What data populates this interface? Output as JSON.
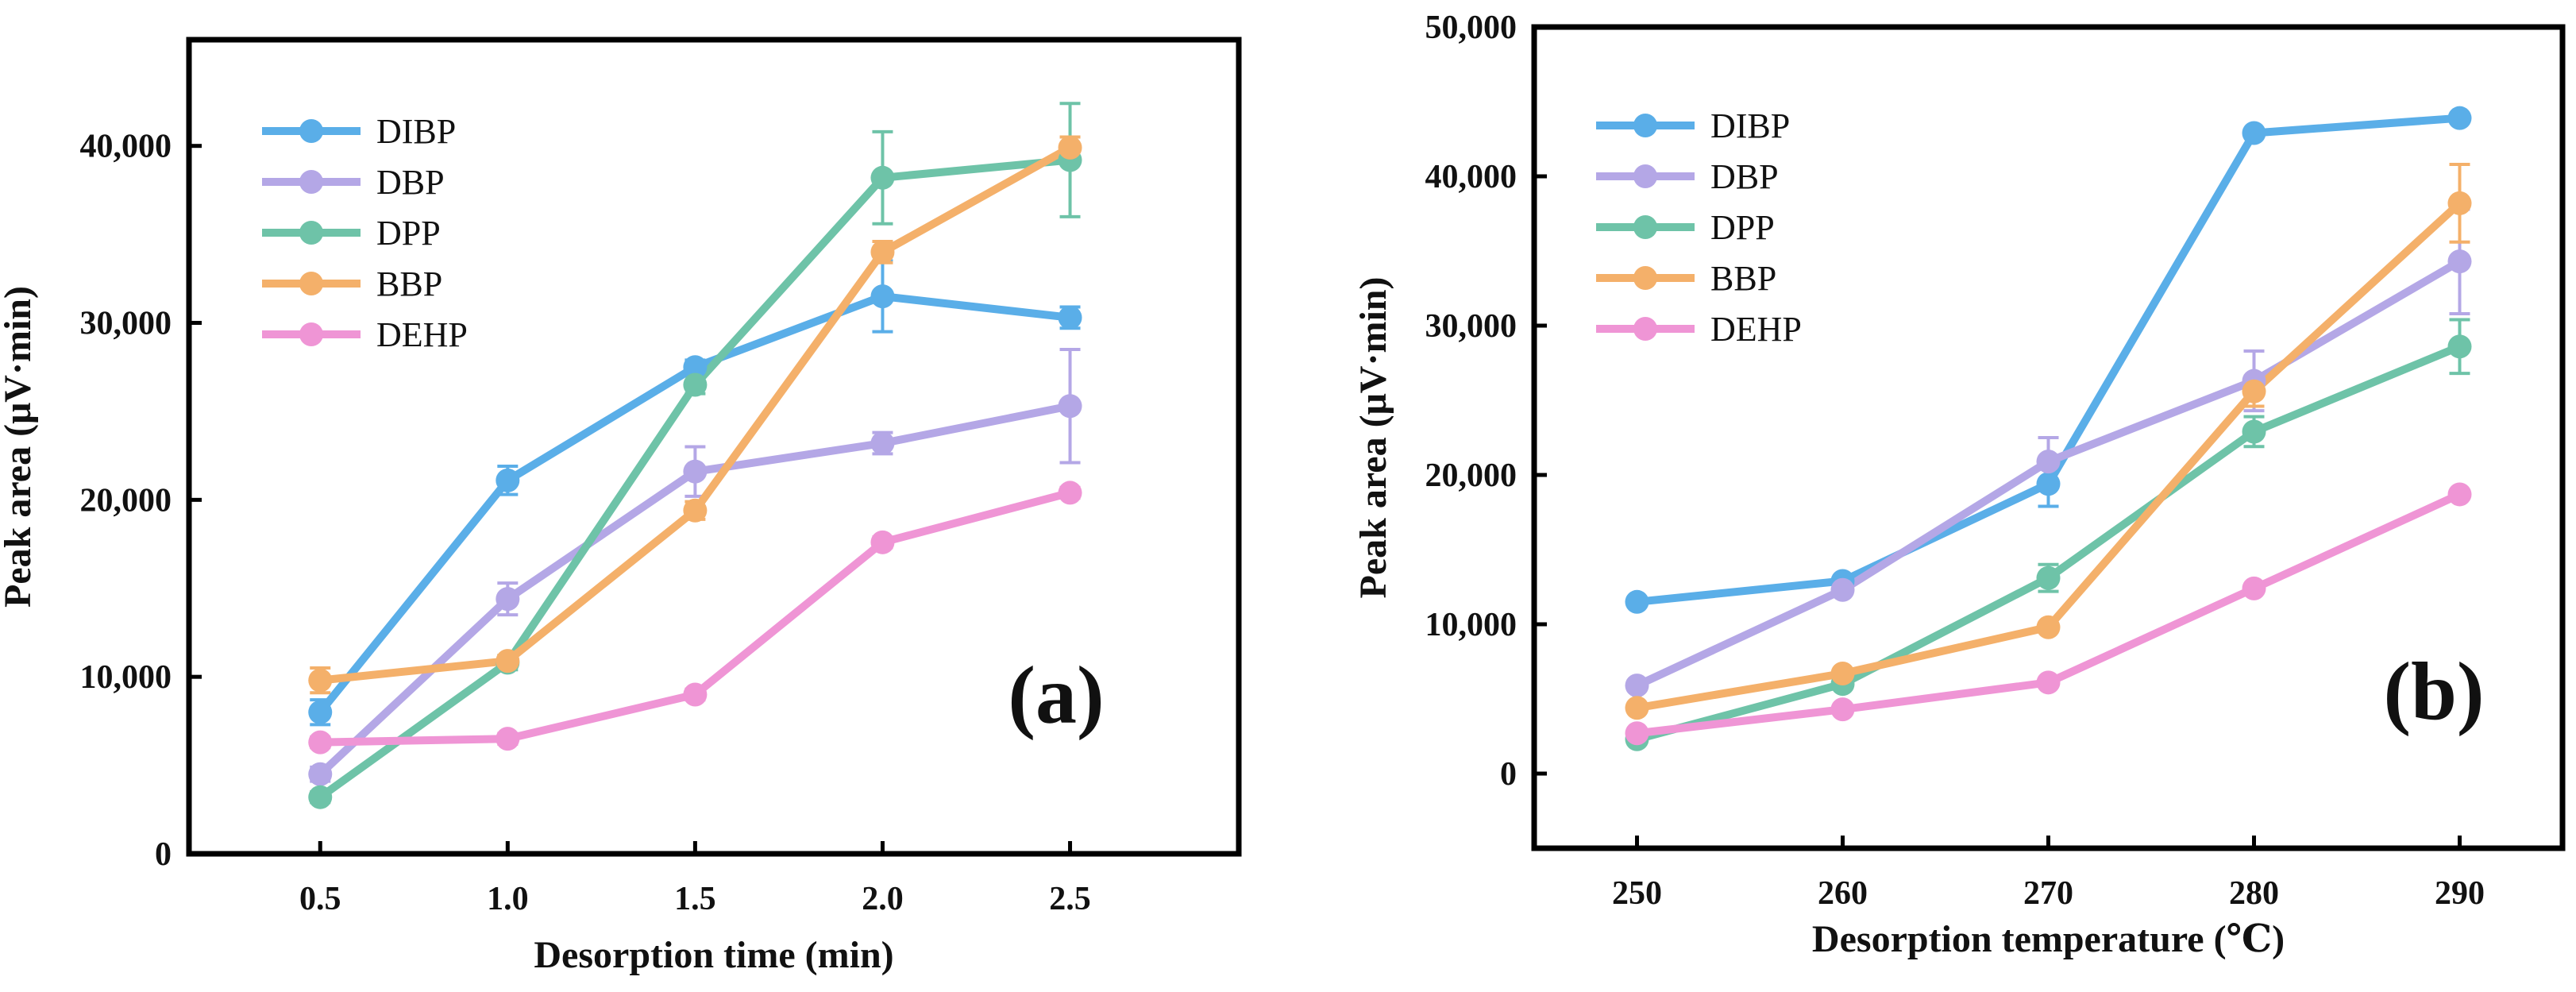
{
  "chart_data": [
    {
      "type": "line",
      "panel_label": "(a)",
      "xlabel": "Desorption time (min)",
      "ylabel": "Peak area (μV·min)",
      "x": [
        0.5,
        1.0,
        1.5,
        2.0,
        2.5
      ],
      "x_tick_labels": [
        "0.5",
        "1.0",
        "1.5",
        "2.0",
        "2.5"
      ],
      "xlim": [
        0.15,
        2.95
      ],
      "ylim": [
        0,
        46000
      ],
      "y_ticks": [
        0,
        10000,
        20000,
        30000,
        40000
      ],
      "y_tick_labels": [
        "0",
        "10,000",
        "20,000",
        "30,000",
        "40,000"
      ],
      "legend_position": "top-left",
      "series": [
        {
          "name": "DIBP",
          "color": "#5aaee8",
          "values": [
            8000,
            21100,
            27500,
            31500,
            30300
          ],
          "errors": [
            700,
            800,
            400,
            2000,
            600
          ]
        },
        {
          "name": "DBP",
          "color": "#b4a7e6",
          "values": [
            4500,
            14400,
            21600,
            23200,
            25300
          ],
          "errors": [
            400,
            900,
            1400,
            600,
            3200
          ]
        },
        {
          "name": "DPP",
          "color": "#6ec3a8",
          "values": [
            3200,
            10800,
            26500,
            38200,
            39200
          ],
          "errors": [
            300,
            400,
            500,
            2600,
            3200
          ]
        },
        {
          "name": "BBP",
          "color": "#f4b06a",
          "values": [
            9800,
            10900,
            19400,
            34000,
            39900
          ],
          "errors": [
            700,
            300,
            500,
            600,
            600
          ]
        },
        {
          "name": "DEHP",
          "color": "#ef95d5",
          "values": [
            6300,
            6500,
            9000,
            17600,
            20400
          ],
          "errors": [
            300,
            300,
            300,
            300,
            300
          ]
        }
      ]
    },
    {
      "type": "line",
      "panel_label": "(b)",
      "xlabel": "Desorption temperature (℃)",
      "ylabel": "Peak area (μV·min)",
      "x": [
        250,
        260,
        270,
        280,
        290
      ],
      "x_tick_labels": [
        "250",
        "260",
        "270",
        "280",
        "290"
      ],
      "xlim": [
        245,
        295
      ],
      "ylim": [
        -5000,
        50000
      ],
      "y_ticks": [
        0,
        10000,
        20000,
        30000,
        40000,
        50000
      ],
      "y_tick_labels": [
        "0",
        "10,000",
        "20,000",
        "30,000",
        "40,000",
        "50,000"
      ],
      "legend_position": "top-left",
      "series": [
        {
          "name": "DIBP",
          "color": "#5aaee8",
          "values": [
            11500,
            12900,
            19400,
            42900,
            43900
          ],
          "errors": [
            300,
            300,
            1500,
            300,
            300
          ]
        },
        {
          "name": "DBP",
          "color": "#b4a7e6",
          "values": [
            5900,
            12300,
            20900,
            26300,
            34300
          ],
          "errors": [
            300,
            300,
            1600,
            2000,
            3500
          ]
        },
        {
          "name": "DPP",
          "color": "#6ec3a8",
          "values": [
            2300,
            6000,
            13100,
            22900,
            28600
          ],
          "errors": [
            300,
            300,
            900,
            1000,
            1800
          ]
        },
        {
          "name": "BBP",
          "color": "#f4b06a",
          "values": [
            4400,
            6700,
            9800,
            25600,
            38200
          ],
          "errors": [
            300,
            300,
            300,
            1000,
            2600
          ]
        },
        {
          "name": "DEHP",
          "color": "#ef95d5",
          "values": [
            2700,
            4300,
            6100,
            12400,
            18700
          ],
          "errors": [
            300,
            300,
            300,
            300,
            300
          ]
        }
      ]
    }
  ]
}
